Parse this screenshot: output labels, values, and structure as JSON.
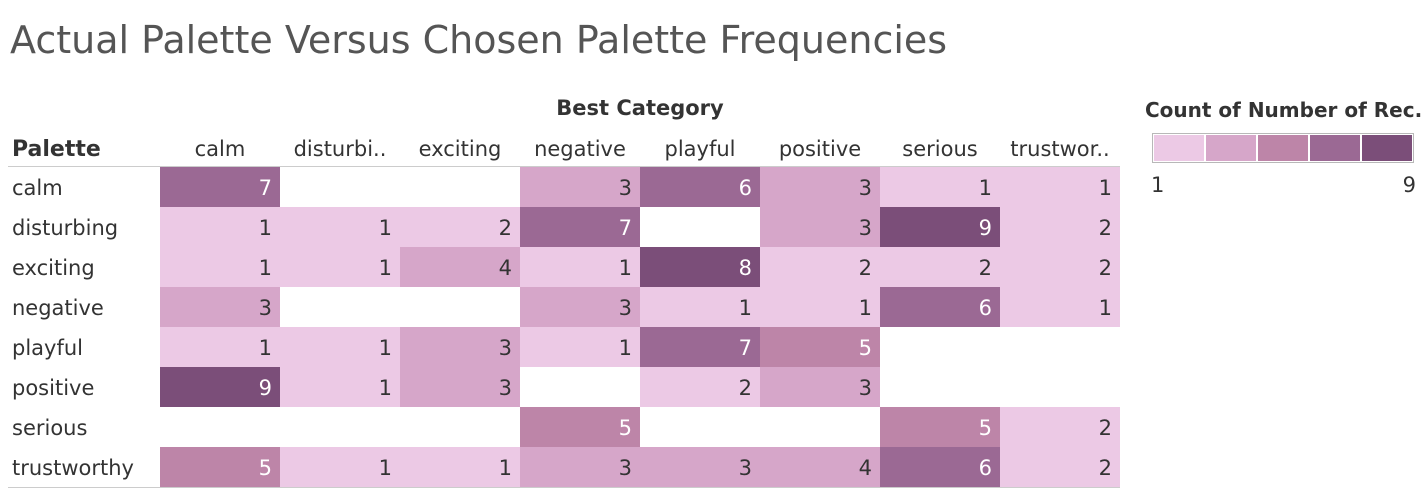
{
  "title": "Actual Palette Versus Chosen Palette Frequencies",
  "chart_data": {
    "type": "heatmap",
    "title": "Actual Palette Versus Chosen Palette Frequencies",
    "row_header": "Palette",
    "column_header": "Best Category",
    "rows": [
      "calm",
      "disturbing",
      "exciting",
      "negative",
      "playful",
      "positive",
      "serious",
      "trustworthy"
    ],
    "columns": [
      "calm",
      "disturbi..",
      "exciting",
      "negative",
      "playful",
      "positive",
      "serious",
      "trustwor.."
    ],
    "values": [
      [
        7,
        null,
        null,
        3,
        6,
        3,
        1,
        1
      ],
      [
        1,
        1,
        2,
        7,
        null,
        3,
        9,
        2
      ],
      [
        1,
        1,
        4,
        1,
        8,
        2,
        2,
        2
      ],
      [
        3,
        null,
        null,
        3,
        1,
        1,
        6,
        1
      ],
      [
        1,
        1,
        3,
        1,
        7,
        5,
        null,
        null
      ],
      [
        9,
        1,
        3,
        null,
        2,
        3,
        null,
        null
      ],
      [
        null,
        null,
        null,
        5,
        null,
        null,
        5,
        2
      ],
      [
        5,
        1,
        1,
        3,
        3,
        4,
        6,
        2
      ]
    ],
    "color_scale": {
      "title": "Count of Number of Rec..",
      "min": 1,
      "max": 9,
      "min_label": "1",
      "max_label": "9",
      "colors": [
        "#ecc9e5",
        "#d6a6c9",
        "#bd85a8",
        "#9b6994",
        "#7b4e79"
      ]
    }
  }
}
